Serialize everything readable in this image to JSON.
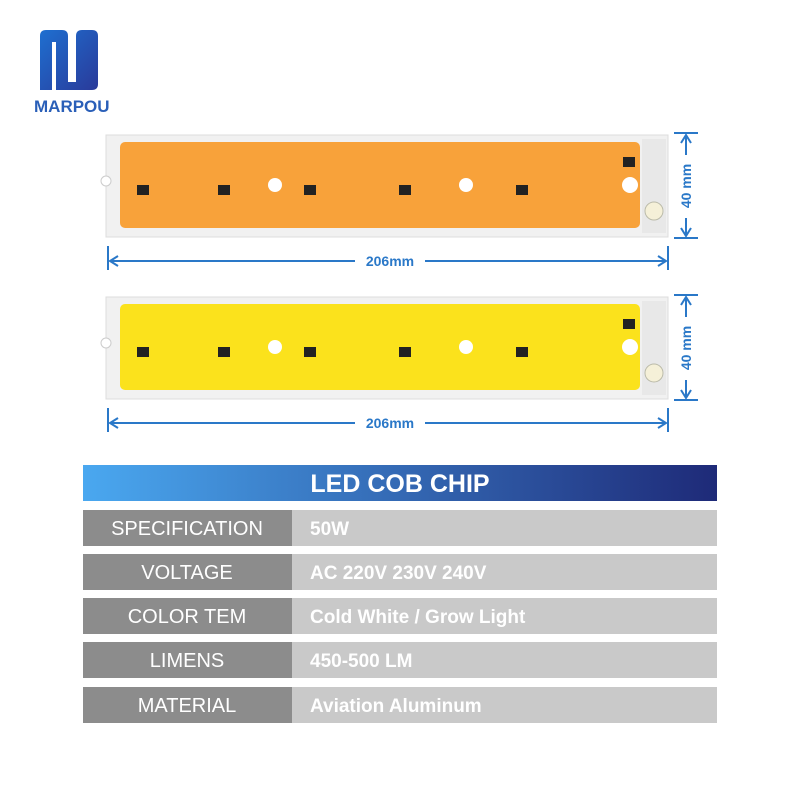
{
  "brand": "MARPOU",
  "chips": [
    {
      "width_label": "206mm",
      "height_label": "40 mm"
    },
    {
      "width_label": "206mm",
      "height_label": "40 mm"
    }
  ],
  "table": {
    "title": "LED COB CHIP",
    "rows": [
      [
        "SPECIFICATION",
        "50W"
      ],
      [
        "VOLTAGE",
        "AC 220V 230V 240V"
      ],
      [
        "COLOR TEM",
        "Cold White / Grow Light"
      ],
      [
        "LIMENS",
        "450-500 LM"
      ],
      [
        "MATERIAL",
        "Aviation Aluminum"
      ]
    ]
  }
}
